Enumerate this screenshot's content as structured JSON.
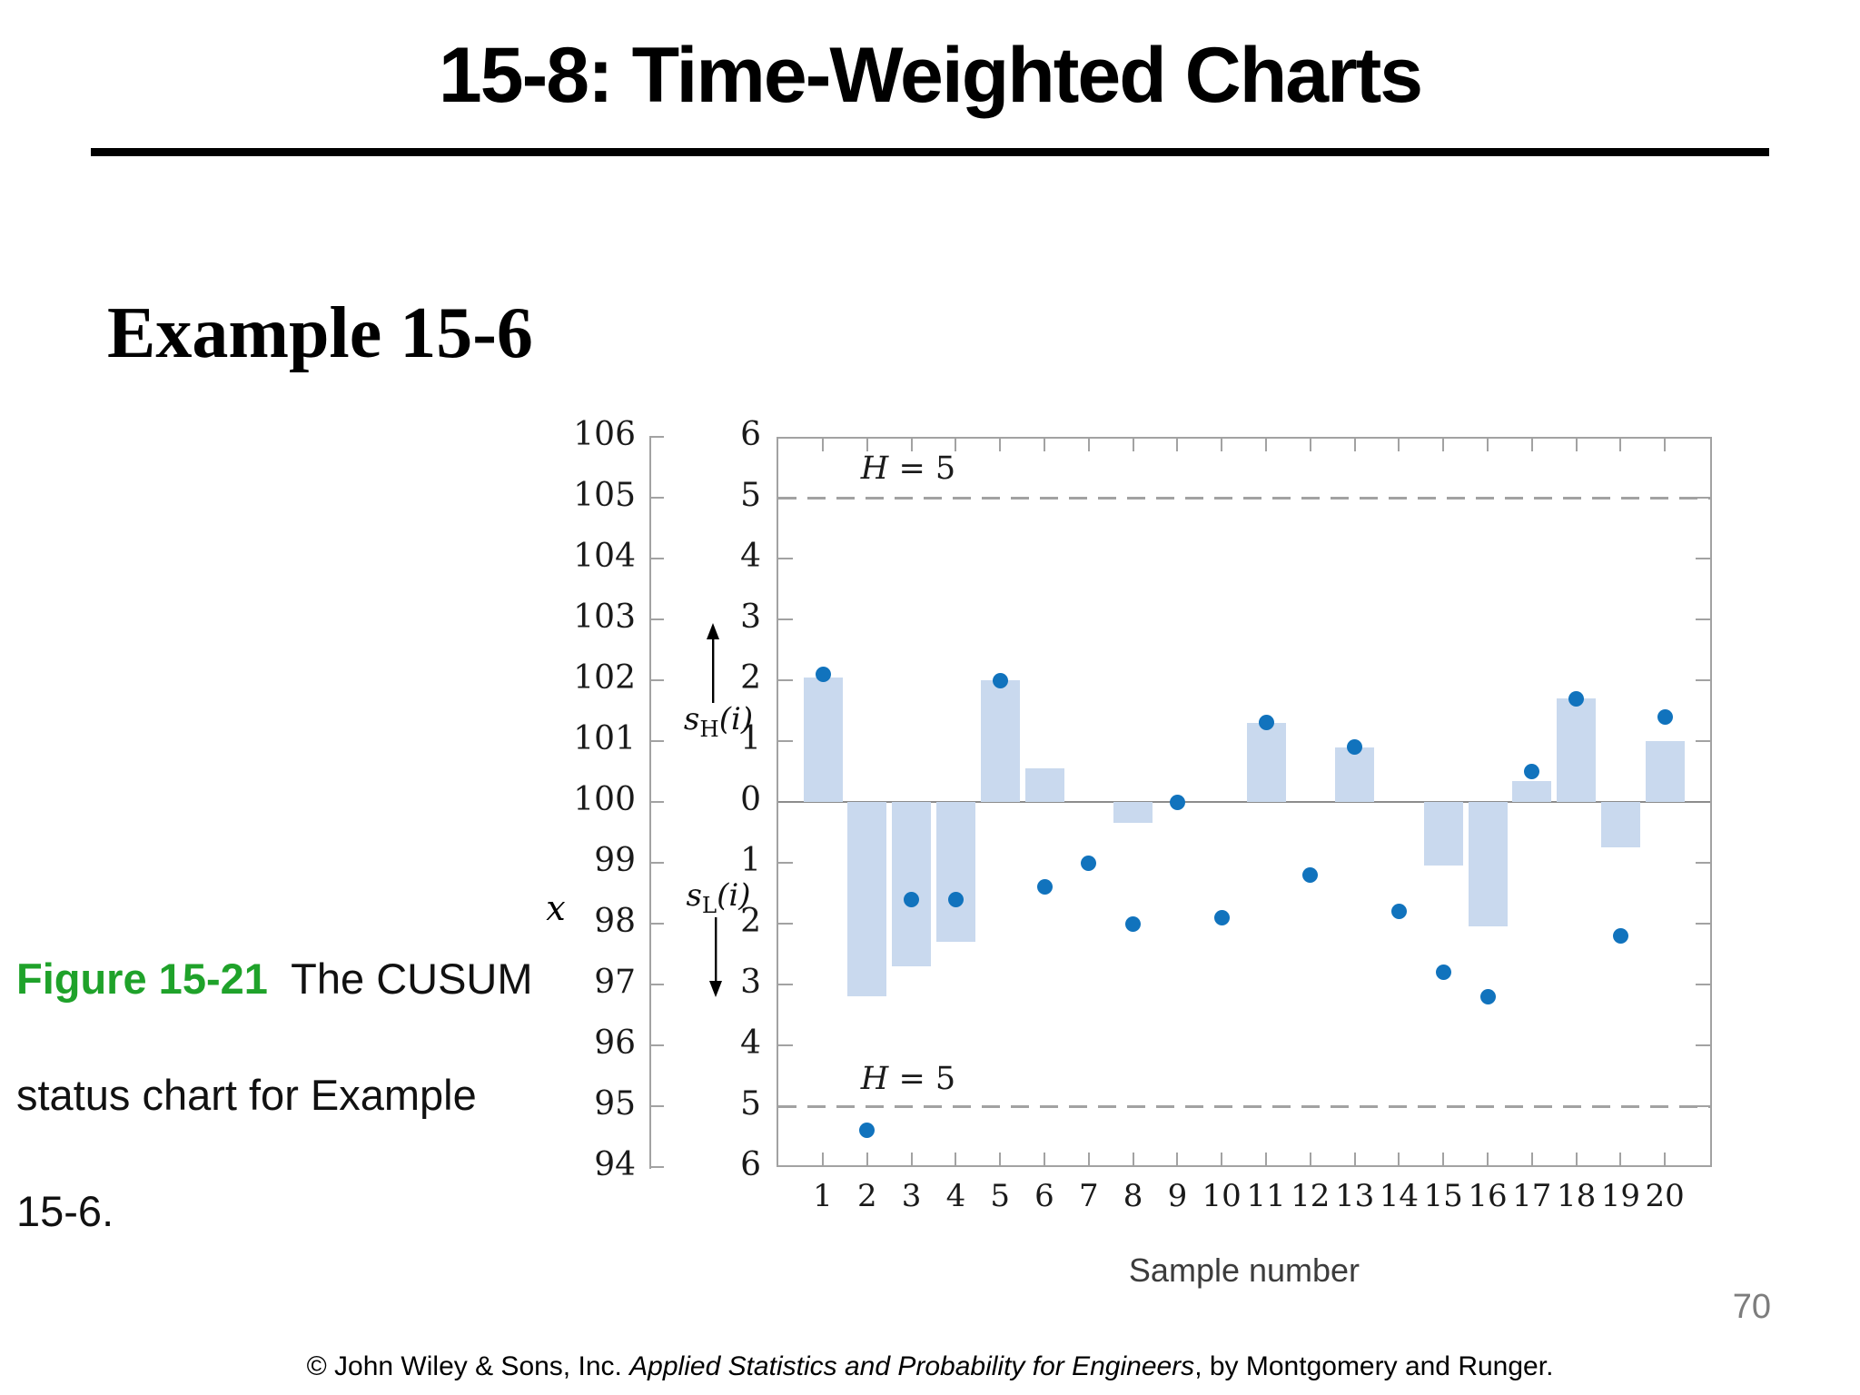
{
  "slide": {
    "title": "15-8: Time-Weighted Charts",
    "example_heading": "Example 15-6",
    "page_number": "70",
    "caption": {
      "figure_label": "Figure 15-21",
      "figure_label_color": "#1fa22a",
      "line1_rest": "  The CUSUM",
      "line2": "status chart for Example",
      "line3": "15-6."
    },
    "footer": {
      "prefix": "© John Wiley & Sons, Inc.  ",
      "book_title_italic": "Applied Statistics and Probability for Engineers",
      "suffix": ", by Montgomery and Runger."
    }
  },
  "chart_data": {
    "type": "bar",
    "subtype": "cusum-status-chart",
    "xlabel": "Sample number",
    "categories": [
      1,
      2,
      3,
      4,
      5,
      6,
      7,
      8,
      9,
      10,
      11,
      12,
      13,
      14,
      15,
      16,
      17,
      18,
      19,
      20
    ],
    "series": [
      {
        "name": "sample mean x (dots, left axis)",
        "type": "scatter",
        "values": [
          102.1,
          94.6,
          98.4,
          98.4,
          102.0,
          98.6,
          99.0,
          98.0,
          100.0,
          98.1,
          101.3,
          98.8,
          100.9,
          98.2,
          97.2,
          96.8,
          100.5,
          101.7,
          97.8,
          101.4
        ]
      },
      {
        "name": "sH(i) upper CUSUM (bars up)",
        "type": "bar",
        "values": [
          2.05,
          0,
          0,
          0,
          2.0,
          0.55,
          0,
          0,
          0,
          0,
          1.3,
          0,
          0.9,
          0,
          0,
          0,
          0.35,
          1.7,
          0,
          1.0
        ]
      },
      {
        "name": "sL(i) lower CUSUM (bars down)",
        "type": "bar",
        "values": [
          0,
          3.2,
          2.7,
          2.3,
          0,
          0,
          0,
          0.35,
          0,
          0,
          0,
          0,
          0,
          0,
          1.05,
          2.05,
          0,
          0,
          0.75,
          0
        ]
      }
    ],
    "left_axis": {
      "label": "x",
      "min": 94,
      "max": 106,
      "ticks": [
        106,
        105,
        104,
        103,
        102,
        101,
        100,
        99,
        98,
        97,
        96,
        95,
        94
      ]
    },
    "cusum_axis": {
      "max": 6,
      "ticks": [
        6,
        5,
        4,
        3,
        2,
        1,
        0,
        1,
        2,
        3,
        4,
        5,
        6
      ],
      "upper_label": {
        "base": "s",
        "sub": "H",
        "rest": "(i)"
      },
      "lower_label": {
        "base": "s",
        "sub": "L",
        "rest": "(i)"
      }
    },
    "decision_interval": {
      "value": 5,
      "label_var": "H",
      "label_rest": " = 5"
    },
    "grid": false,
    "legend": "none",
    "colors": {
      "bar": "#c9d9ee",
      "dot": "#1173bd",
      "frame": "#a2a2a2",
      "zero_line": "#8c8c8c",
      "dashed_limit": "#a2a2a2"
    }
  }
}
